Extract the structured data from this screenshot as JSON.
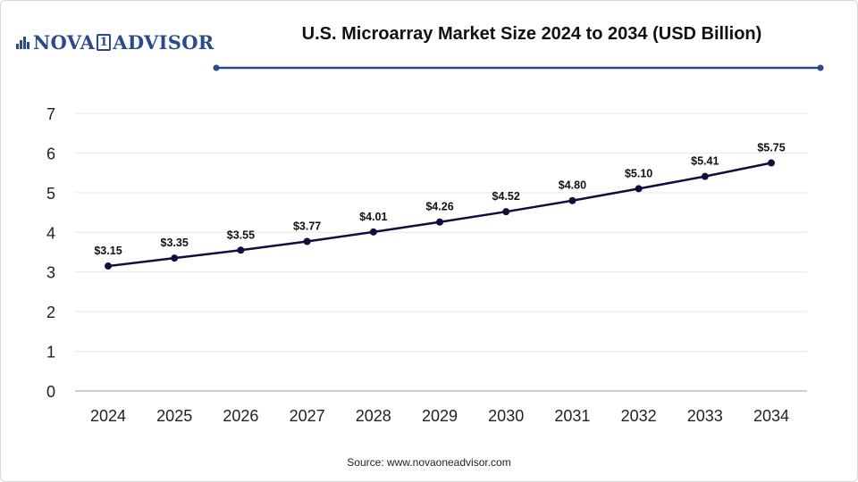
{
  "brand": {
    "logo_text_left": "NOVA",
    "logo_mark": "1",
    "logo_text_right": "ADVISOR"
  },
  "header": {
    "title": "U.S. Microarray Market Size 2024 to 2034 (USD Billion)"
  },
  "footer": {
    "source": "Source: www.novaoneadvisor.com"
  },
  "colors": {
    "line": "#0f0f3f",
    "accent": "#2b4a8a",
    "grid": "#e6e6e6",
    "axis": "#bfbfbf"
  },
  "chart_data": {
    "type": "line",
    "title": "U.S. Microarray Market Size 2024 to 2034 (USD Billion)",
    "xlabel": "",
    "ylabel": "",
    "categories": [
      "2024",
      "2025",
      "2026",
      "2027",
      "2028",
      "2029",
      "2030",
      "2031",
      "2032",
      "2033",
      "2034"
    ],
    "series": [
      {
        "values": [
          3.15,
          3.35,
          3.55,
          3.77,
          4.01,
          4.26,
          4.52,
          4.8,
          5.1,
          5.41,
          5.75
        ],
        "labels": [
          "$3.15",
          "$3.35",
          "$3.55",
          "$3.77",
          "$4.01",
          "$4.26",
          "$4.52",
          "$4.80",
          "$5.10",
          "$5.41",
          "$5.75"
        ]
      }
    ],
    "ylim": [
      0,
      7
    ],
    "yticks": [
      "0",
      "1",
      "2",
      "3",
      "4",
      "5",
      "6",
      "7"
    ],
    "grid": true,
    "legend": "none"
  }
}
